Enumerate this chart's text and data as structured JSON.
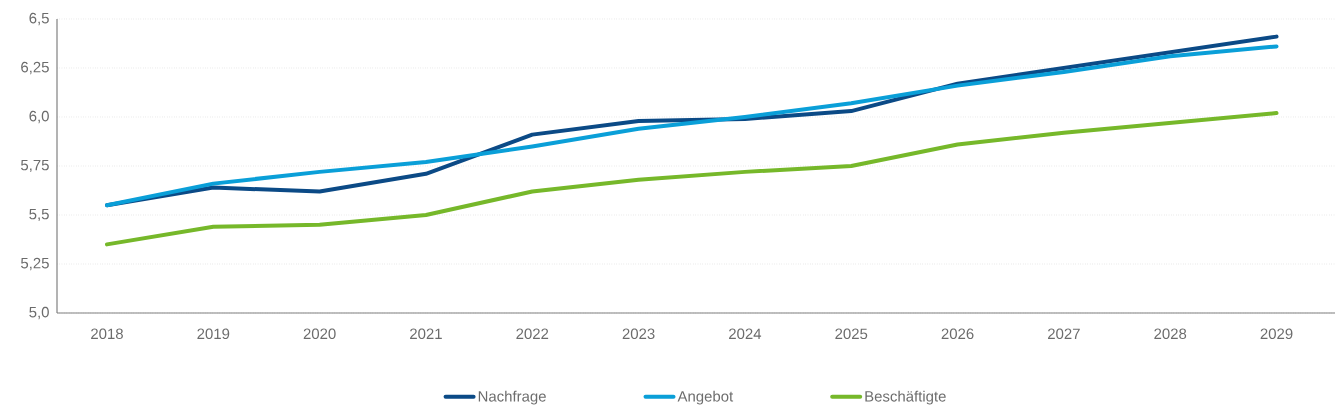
{
  "chart_data": {
    "type": "line",
    "categories": [
      "2018",
      "2019",
      "2020",
      "2021",
      "2022",
      "2023",
      "2024",
      "2025",
      "2026",
      "2027",
      "2028",
      "2029"
    ],
    "ylim": [
      5.0,
      6.5
    ],
    "yticks": [
      {
        "value": 5.0,
        "label": "5,0"
      },
      {
        "value": 5.25,
        "label": "5,25"
      },
      {
        "value": 5.5,
        "label": "5,5"
      },
      {
        "value": 5.75,
        "label": "5,75"
      },
      {
        "value": 6.0,
        "label": "6,0"
      },
      {
        "value": 6.25,
        "label": "6,25"
      },
      {
        "value": 6.5,
        "label": "6,5"
      }
    ],
    "grid": "y",
    "legend": "bottom",
    "line_style": "solid",
    "marker": "none",
    "series": [
      {
        "name": "Nachfrage",
        "color": "#0b4a86",
        "values": [
          5.55,
          5.64,
          5.62,
          5.71,
          5.91,
          5.98,
          5.99,
          6.03,
          6.17,
          6.25,
          6.33,
          6.41
        ]
      },
      {
        "name": "Angebot",
        "color": "#0a9fd8",
        "values": [
          5.55,
          5.66,
          5.72,
          5.77,
          5.85,
          5.94,
          6.0,
          6.07,
          6.16,
          6.23,
          6.31,
          6.36
        ]
      },
      {
        "name": "Beschäftigte",
        "color": "#76b82a",
        "values": [
          5.35,
          5.44,
          5.45,
          5.5,
          5.62,
          5.68,
          5.72,
          5.75,
          5.86,
          5.92,
          5.97,
          6.02
        ]
      }
    ]
  }
}
